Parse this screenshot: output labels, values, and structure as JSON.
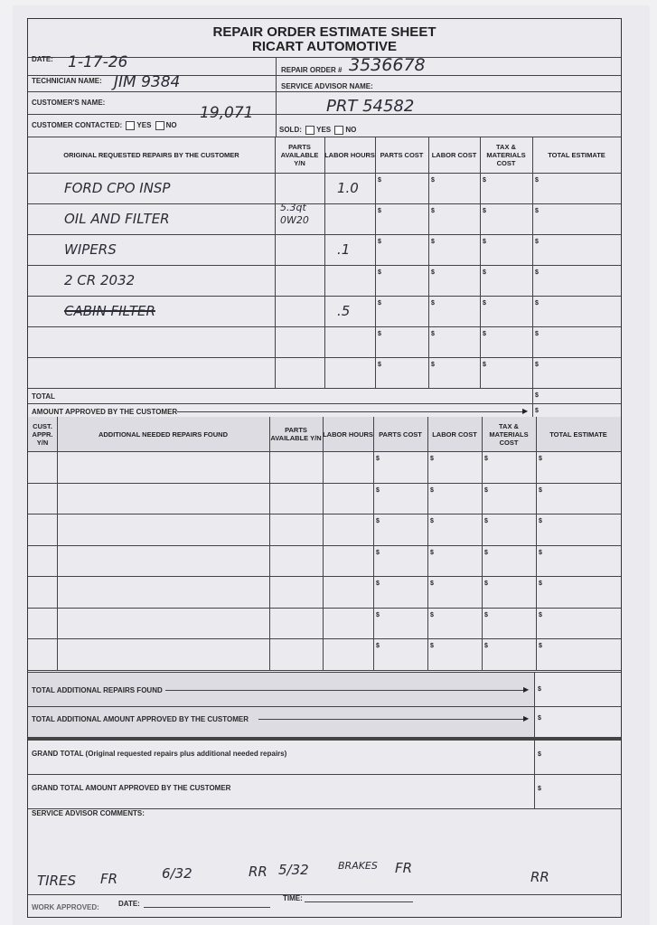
{
  "form": {
    "title": "REPAIR ORDER ESTIMATE SHEET",
    "company": "RICART AUTOMOTIVE"
  },
  "header": {
    "date_label": "DATE:",
    "date_value": "1-17-26",
    "repair_order_label": "REPAIR ORDER #",
    "repair_order_value": "3536678",
    "technician_label": "TECHNICIAN NAME:",
    "technician_value": "JIM 9384",
    "service_advisor_label": "SERVICE ADVISOR NAME:",
    "customer_label": "CUSTOMER'S NAME:",
    "customer_value": "19,071",
    "service_advisor_value": "PRT 54582",
    "contacted_label": "CUSTOMER CONTACTED:",
    "yes_label": "YES",
    "no_label": "NO",
    "sold_label": "SOLD:"
  },
  "original_table": {
    "columns": [
      "ORIGINAL REQUESTED REPAIRS BY THE CUSTOMER",
      "PARTS AVAILABLE Y/N",
      "LABOR HOURS",
      "PARTS COST",
      "LABOR COST",
      "TAX & MATERIALS COST",
      "TOTAL ESTIMATE"
    ],
    "currency": "$",
    "rows": [
      {
        "repair": "FORD CPO INSP",
        "parts": "",
        "labor": "1.0",
        "struck": false
      },
      {
        "repair": "OIL AND FILTER",
        "parts": "5.3qt 0W20",
        "labor": "",
        "struck": false
      },
      {
        "repair": "WIPERS",
        "parts": "",
        "labor": ".1",
        "struck": false
      },
      {
        "repair": "2 CR 2032",
        "parts": "",
        "labor": "",
        "struck": false
      },
      {
        "repair": "CABIN FILTER",
        "parts": "",
        "labor": ".5",
        "struck": true
      },
      {
        "repair": "",
        "parts": "",
        "labor": "",
        "struck": false
      },
      {
        "repair": "",
        "parts": "",
        "labor": "",
        "struck": false
      }
    ],
    "total_label": "TOTAL",
    "approved_label": "AMOUNT APPROVED BY THE CUSTOMER"
  },
  "additional_table": {
    "columns": [
      "CUST. APPR. Y/N",
      "ADDITIONAL NEEDED REPAIRS FOUND",
      "PARTS AVAILABLE Y/N",
      "LABOR HOURS",
      "PARTS COST",
      "LABOR COST",
      "TAX & MATERIALS COST",
      "TOTAL ESTIMATE"
    ],
    "row_count": 7
  },
  "summary": {
    "total_additional_found": "TOTAL ADDITIONAL REPAIRS FOUND",
    "total_additional_approved": "TOTAL ADDITIONAL AMOUNT APPROVED BY THE CUSTOMER",
    "grand_total": "GRAND TOTAL (Original requested repairs plus additional needed repairs)",
    "grand_total_approved": "GRAND TOTAL AMOUNT APPROVED BY THE CUSTOMER"
  },
  "comments": {
    "label": "SERVICE ADVISOR COMMENTS:",
    "handwritten": [
      "TIRES",
      "FR",
      "6/32",
      "RR",
      "5/32",
      "BRAKES",
      "FR",
      "RR"
    ]
  },
  "footer": {
    "work_approved_label": "WORK APPROVED:",
    "date_label": "DATE:",
    "time_label": "TIME:"
  }
}
